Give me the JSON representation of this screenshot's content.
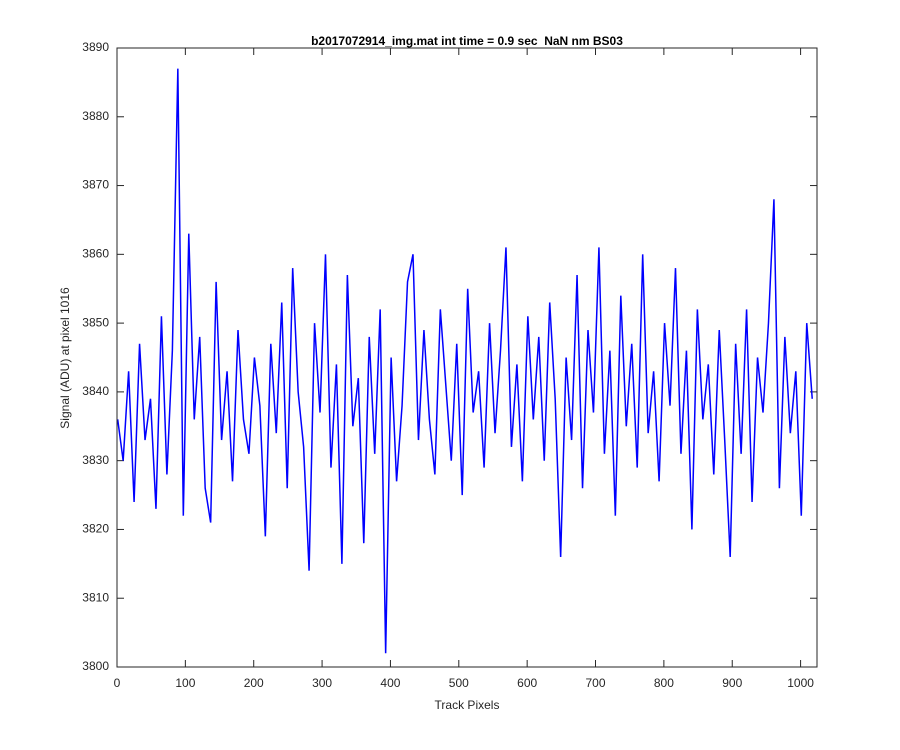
{
  "chart_data": {
    "type": "line",
    "title": "b2017072914_img.mat int time = 0.9 sec  NaN nm BS03",
    "x_label": "Track Pixels",
    "y_label": "Signal (ADU) at pixel 1016",
    "xlim": [
      0,
      1024
    ],
    "xticks": [
      0,
      100,
      200,
      300,
      400,
      500,
      600,
      700,
      800,
      900,
      1000
    ],
    "ylim": [
      3800,
      3890
    ],
    "yticks": [
      3800,
      3810,
      3820,
      3830,
      3840,
      3850,
      3860,
      3870,
      3880,
      3890
    ],
    "x": [
      1,
      9,
      17,
      25,
      33,
      41,
      49,
      57,
      65,
      73,
      81,
      89,
      97,
      105,
      113,
      121,
      129,
      137,
      145,
      153,
      161,
      169,
      177,
      185,
      193,
      201,
      209,
      217,
      225,
      233,
      241,
      249,
      257,
      265,
      273,
      281,
      289,
      297,
      305,
      313,
      321,
      329,
      337,
      345,
      353,
      361,
      369,
      377,
      385,
      393,
      401,
      409,
      417,
      425,
      433,
      441,
      449,
      457,
      465,
      473,
      481,
      489,
      497,
      505,
      513,
      521,
      529,
      537,
      545,
      553,
      561,
      569,
      577,
      585,
      593,
      601,
      609,
      617,
      625,
      633,
      641,
      649,
      657,
      665,
      673,
      681,
      689,
      697,
      705,
      713,
      721,
      729,
      737,
      745,
      753,
      761,
      769,
      777,
      785,
      793,
      801,
      809,
      817,
      825,
      833,
      841,
      849,
      857,
      865,
      873,
      881,
      889,
      897,
      905,
      913,
      921,
      929,
      937,
      945,
      953,
      961,
      969,
      977,
      985,
      993,
      1001,
      1009,
      1017
    ],
    "series": [
      {
        "color": "#0000ff",
        "values": [
          3836,
          3830,
          3843,
          3824,
          3847,
          3833,
          3839,
          3823,
          3851,
          3828,
          3846,
          3887,
          3822,
          3863,
          3836,
          3848,
          3826,
          3821,
          3856,
          3833,
          3843,
          3827,
          3849,
          3836,
          3831,
          3845,
          3838,
          3819,
          3847,
          3834,
          3853,
          3826,
          3858,
          3840,
          3832,
          3814,
          3850,
          3837,
          3860,
          3829,
          3844,
          3815,
          3857,
          3835,
          3842,
          3818,
          3848,
          3831,
          3852,
          3802,
          3845,
          3827,
          3838,
          3856,
          3860,
          3833,
          3849,
          3836,
          3828,
          3852,
          3841,
          3830,
          3847,
          3825,
          3855,
          3837,
          3843,
          3829,
          3850,
          3834,
          3846,
          3861,
          3832,
          3844,
          3827,
          3851,
          3836,
          3848,
          3830,
          3853,
          3839,
          3816,
          3845,
          3833,
          3857,
          3826,
          3849,
          3837,
          3861,
          3831,
          3846,
          3822,
          3854,
          3835,
          3847,
          3829,
          3860,
          3834,
          3843,
          3827,
          3850,
          3838,
          3858,
          3831,
          3846,
          3820,
          3852,
          3836,
          3844,
          3828,
          3849,
          3833,
          3816,
          3847,
          3831,
          3852,
          3824,
          3845,
          3837,
          3850,
          3868,
          3826,
          3848,
          3834,
          3843,
          3822,
          3850,
          3839
        ]
      }
    ]
  }
}
